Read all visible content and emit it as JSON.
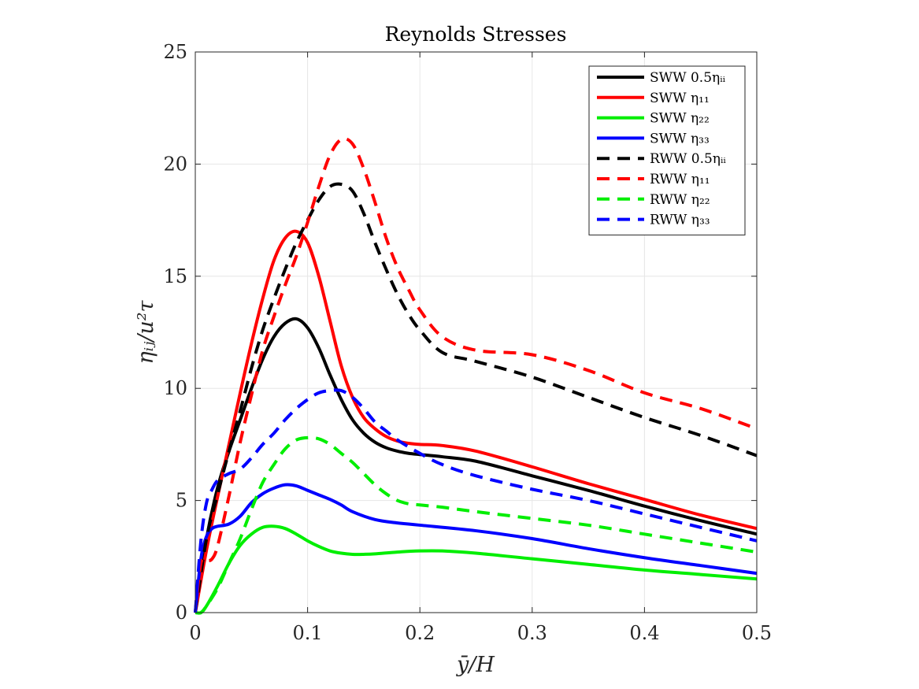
{
  "chart_data": {
    "type": "line",
    "title": "Reynolds Stresses",
    "xlabel": "ȳ/H",
    "ylabel": "ηᵢⱼ/u²τ",
    "xlim": [
      0,
      0.5
    ],
    "ylim": [
      0,
      25
    ],
    "xticks": [
      0,
      0.1,
      0.2,
      0.3,
      0.4,
      0.5
    ],
    "xtick_labels": [
      "0",
      "0.1",
      "0.2",
      "0.3",
      "0.4",
      "0.5"
    ],
    "yticks": [
      0,
      5,
      10,
      15,
      20,
      25
    ],
    "ytick_labels": [
      "0",
      "5",
      "10",
      "15",
      "20",
      "25"
    ],
    "grid": true,
    "legend_position": "top-right",
    "series": [
      {
        "name": "SWW 0.5ηᵢᵢ",
        "color": "#000000",
        "dash": "solid",
        "x": [
          0,
          0.01,
          0.02,
          0.03,
          0.04,
          0.05,
          0.06,
          0.07,
          0.08,
          0.09,
          0.1,
          0.11,
          0.12,
          0.13,
          0.14,
          0.15,
          0.16,
          0.17,
          0.18,
          0.19,
          0.2,
          0.22,
          0.25,
          0.3,
          0.35,
          0.4,
          0.45,
          0.5
        ],
        "y": [
          0,
          3.3,
          5.6,
          7.2,
          8.6,
          10.0,
          11.3,
          12.3,
          12.9,
          13.1,
          12.7,
          11.8,
          10.6,
          9.5,
          8.6,
          8.0,
          7.6,
          7.35,
          7.2,
          7.1,
          7.05,
          6.95,
          6.75,
          6.1,
          5.45,
          4.75,
          4.1,
          3.5
        ]
      },
      {
        "name": "SWW η₁₁",
        "color": "#ff0000",
        "dash": "solid",
        "x": [
          0,
          0.01,
          0.02,
          0.03,
          0.04,
          0.05,
          0.06,
          0.07,
          0.08,
          0.09,
          0.1,
          0.11,
          0.12,
          0.13,
          0.14,
          0.15,
          0.16,
          0.17,
          0.18,
          0.19,
          0.2,
          0.22,
          0.25,
          0.3,
          0.35,
          0.4,
          0.45,
          0.5
        ],
        "y": [
          0,
          2.8,
          5.2,
          7.5,
          9.8,
          12.0,
          14.0,
          15.7,
          16.7,
          17.0,
          16.5,
          15.0,
          13.0,
          11.0,
          9.6,
          8.7,
          8.2,
          7.85,
          7.65,
          7.55,
          7.5,
          7.45,
          7.2,
          6.5,
          5.75,
          5.05,
          4.35,
          3.75
        ]
      },
      {
        "name": "SWW η₂₂",
        "color": "#00ee00",
        "dash": "solid",
        "x": [
          0,
          0.005,
          0.01,
          0.02,
          0.03,
          0.04,
          0.05,
          0.06,
          0.07,
          0.08,
          0.09,
          0.1,
          0.11,
          0.12,
          0.13,
          0.14,
          0.15,
          0.16,
          0.18,
          0.2,
          0.22,
          0.25,
          0.3,
          0.35,
          0.4,
          0.45,
          0.5
        ],
        "y": [
          0,
          0.0,
          0.3,
          1.2,
          2.2,
          3.0,
          3.5,
          3.8,
          3.85,
          3.75,
          3.5,
          3.2,
          2.95,
          2.75,
          2.65,
          2.6,
          2.6,
          2.62,
          2.7,
          2.75,
          2.75,
          2.65,
          2.4,
          2.15,
          1.9,
          1.7,
          1.5
        ]
      },
      {
        "name": "SWW η₃₃",
        "color": "#0000ff",
        "dash": "solid",
        "x": [
          0,
          0.005,
          0.01,
          0.015,
          0.02,
          0.03,
          0.04,
          0.05,
          0.06,
          0.07,
          0.08,
          0.09,
          0.1,
          0.11,
          0.12,
          0.13,
          0.14,
          0.16,
          0.18,
          0.2,
          0.25,
          0.3,
          0.35,
          0.4,
          0.45,
          0.5
        ],
        "y": [
          0,
          2.4,
          3.4,
          3.75,
          3.85,
          3.95,
          4.3,
          4.9,
          5.3,
          5.55,
          5.7,
          5.65,
          5.45,
          5.25,
          5.05,
          4.8,
          4.5,
          4.15,
          4.0,
          3.9,
          3.65,
          3.3,
          2.85,
          2.45,
          2.1,
          1.75
        ]
      },
      {
        "name": "RWW 0.5ηᵢᵢ",
        "color": "#000000",
        "dash": "dashed",
        "x": [
          0,
          0.01,
          0.02,
          0.03,
          0.04,
          0.05,
          0.06,
          0.07,
          0.08,
          0.09,
          0.1,
          0.11,
          0.12,
          0.13,
          0.14,
          0.15,
          0.16,
          0.17,
          0.18,
          0.19,
          0.2,
          0.22,
          0.25,
          0.3,
          0.35,
          0.4,
          0.45,
          0.5
        ],
        "y": [
          0,
          3.3,
          5.3,
          7.2,
          9.0,
          10.9,
          12.6,
          14.0,
          15.3,
          16.5,
          17.5,
          18.4,
          19.0,
          19.1,
          18.8,
          17.8,
          16.5,
          15.3,
          14.2,
          13.3,
          12.6,
          11.6,
          11.2,
          10.5,
          9.6,
          8.7,
          7.9,
          7.0
        ]
      },
      {
        "name": "RWW η₁₁",
        "color": "#ff0000",
        "dash": "dashed",
        "x": [
          0,
          0.005,
          0.01,
          0.015,
          0.02,
          0.03,
          0.04,
          0.05,
          0.06,
          0.07,
          0.08,
          0.09,
          0.1,
          0.11,
          0.12,
          0.13,
          0.14,
          0.15,
          0.16,
          0.17,
          0.18,
          0.19,
          0.2,
          0.22,
          0.25,
          0.3,
          0.35,
          0.4,
          0.45,
          0.5
        ],
        "y": [
          0,
          2.2,
          2.3,
          2.4,
          3.0,
          5.2,
          7.6,
          9.7,
          11.7,
          13.2,
          14.6,
          15.9,
          17.4,
          19.0,
          20.4,
          21.1,
          20.9,
          19.8,
          18.3,
          16.7,
          15.4,
          14.4,
          13.5,
          12.3,
          11.7,
          11.5,
          10.8,
          9.8,
          9.1,
          8.2
        ]
      },
      {
        "name": "RWW η₂₂",
        "color": "#00ee00",
        "dash": "dashed",
        "x": [
          0,
          0.005,
          0.01,
          0.02,
          0.03,
          0.04,
          0.05,
          0.06,
          0.07,
          0.08,
          0.09,
          0.1,
          0.11,
          0.12,
          0.13,
          0.14,
          0.15,
          0.16,
          0.17,
          0.18,
          0.19,
          0.2,
          0.22,
          0.25,
          0.3,
          0.35,
          0.4,
          0.45,
          0.5
        ],
        "y": [
          0,
          0.0,
          0.3,
          1.1,
          2.2,
          3.3,
          4.6,
          5.8,
          6.6,
          7.3,
          7.7,
          7.8,
          7.75,
          7.5,
          7.1,
          6.7,
          6.2,
          5.7,
          5.3,
          5.0,
          4.85,
          4.8,
          4.7,
          4.5,
          4.2,
          3.9,
          3.5,
          3.1,
          2.7
        ]
      },
      {
        "name": "RWW η₃₃",
        "color": "#0000ff",
        "dash": "dashed",
        "x": [
          0,
          0.005,
          0.01,
          0.015,
          0.02,
          0.03,
          0.04,
          0.05,
          0.06,
          0.07,
          0.08,
          0.09,
          0.1,
          0.11,
          0.12,
          0.13,
          0.14,
          0.15,
          0.16,
          0.17,
          0.18,
          0.2,
          0.22,
          0.25,
          0.3,
          0.35,
          0.4,
          0.45,
          0.5
        ],
        "y": [
          0,
          3.2,
          4.9,
          5.5,
          5.9,
          6.2,
          6.4,
          6.9,
          7.5,
          8.0,
          8.6,
          9.1,
          9.5,
          9.8,
          9.9,
          9.9,
          9.6,
          9.1,
          8.5,
          8.1,
          7.7,
          7.1,
          6.6,
          6.1,
          5.5,
          5.0,
          4.4,
          3.8,
          3.2
        ]
      }
    ]
  }
}
